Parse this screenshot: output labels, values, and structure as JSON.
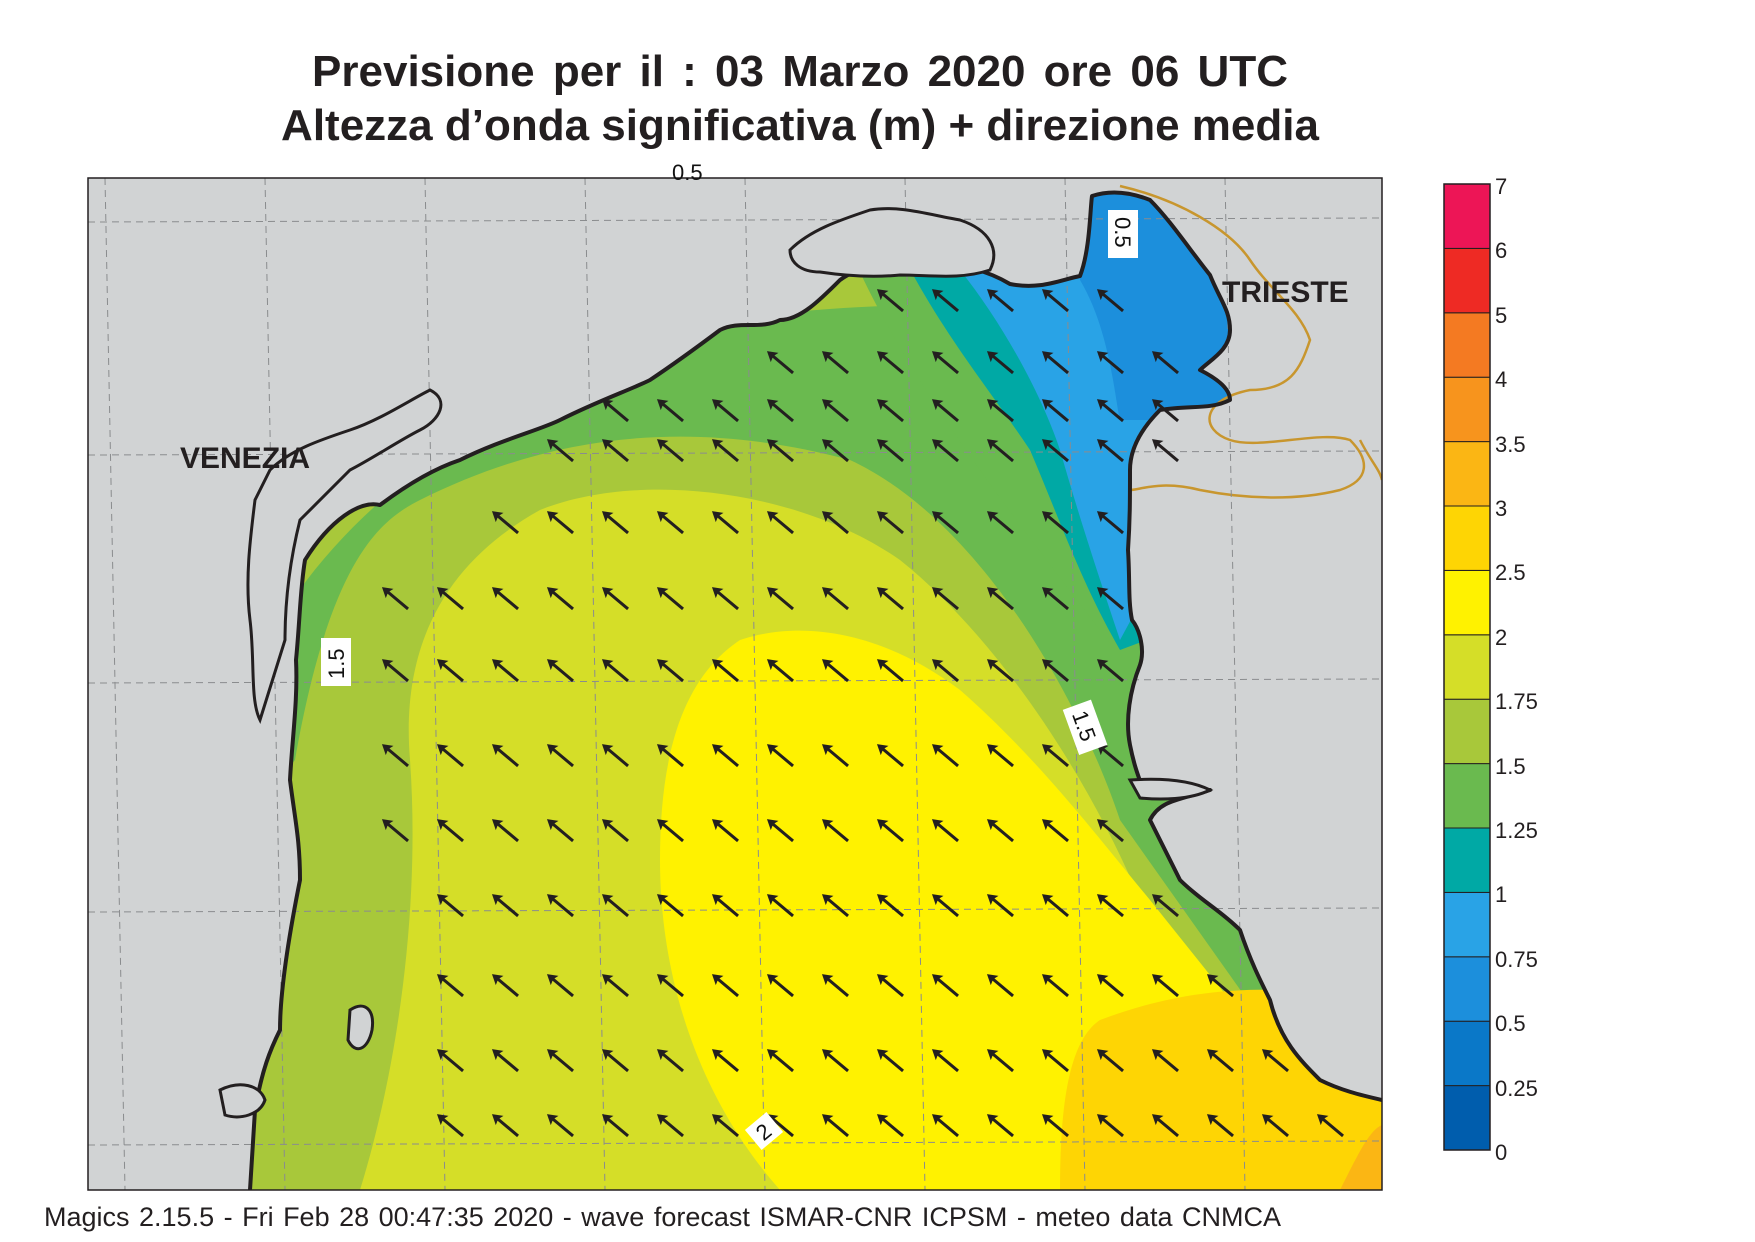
{
  "title": {
    "line1": "Previsione per il  :  03   Marzo   2020   ore 06 UTC",
    "line2": "Altezza d’onda significativa (m) + direzione media"
  },
  "map": {
    "background_color": "#d1d3d4",
    "coast_color": "#231f20",
    "border_color": "#c8962e",
    "cities": [
      "VENEZIA",
      "TRIESTE"
    ],
    "contour_labels": [
      "0.5",
      "1.5",
      "1.5",
      "0.5",
      "2"
    ],
    "arrow_direction": "north-west"
  },
  "colorbar": {
    "ticks": [
      "0",
      "0.25",
      "0.5",
      "0.75",
      "1",
      "1.25",
      "1.5",
      "1.75",
      "2",
      "2.5",
      "3",
      "3.5",
      "4",
      "5",
      "6",
      "7"
    ],
    "colors": [
      "#005dad",
      "#0a78c8",
      "#1c8fdc",
      "#29a3e6",
      "#00a9a5",
      "#6aba4f",
      "#a8c83a",
      "#d5de28",
      "#fff200",
      "#fed504",
      "#fbb614",
      "#f7941d",
      "#f47a22",
      "#ee2a24",
      "#ed1556"
    ]
  },
  "footer": "Magics 2.15.5 - Fri Feb 28 00:47:35 2020 - wave forecast  ISMAR-CNR  ICPSM - meteo data    CNMCA"
}
